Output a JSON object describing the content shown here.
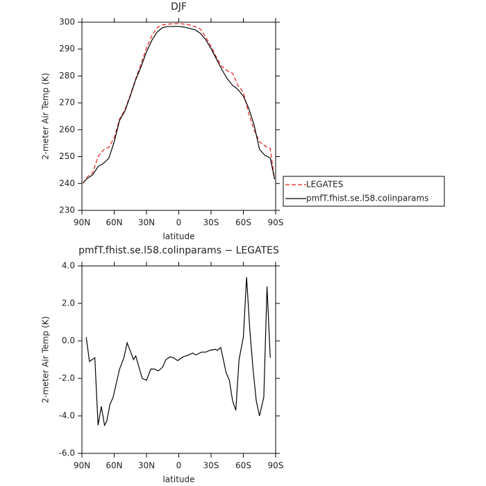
{
  "chart_data": [
    {
      "type": "line",
      "title": "DJF",
      "x_label": "latitude",
      "y_label": "2-meter Air Temp (K)",
      "x": [
        89,
        85,
        80,
        75,
        70,
        65,
        60,
        55,
        50,
        45,
        40,
        35,
        30,
        25,
        20,
        15,
        10,
        5,
        0,
        -5,
        -10,
        -15,
        -20,
        -25,
        -30,
        -35,
        -40,
        -45,
        -50,
        -55,
        -60,
        -65,
        -70,
        -75,
        -80,
        -85,
        -89
      ],
      "xlim": [
        90,
        -90
      ],
      "xticks": [
        {
          "value": 90,
          "label": "90N"
        },
        {
          "value": 60,
          "label": "60N"
        },
        {
          "value": 30,
          "label": "30N"
        },
        0,
        {
          "value": -30,
          "label": "30S"
        },
        {
          "value": -60,
          "label": "60S"
        },
        {
          "value": -90,
          "label": "90S"
        }
      ],
      "ylim": [
        230,
        300
      ],
      "yticks": [
        230,
        240,
        250,
        260,
        270,
        280,
        290,
        300
      ],
      "legend": "right",
      "series": [
        {
          "name": "LEGATES",
          "color": "#e0201b",
          "dashed": true,
          "values": [
            240,
            242.5,
            244,
            250,
            252.5,
            253.5,
            257,
            264,
            267.5,
            273,
            279,
            284.5,
            290.5,
            295,
            298,
            299,
            299.3,
            299.4,
            299.5,
            299.3,
            299,
            298.4,
            297.5,
            294.5,
            291,
            287,
            283.5,
            282,
            281,
            276.5,
            274,
            266,
            260,
            255.5,
            254,
            253,
            241.5
          ]
        },
        {
          "name": "pmfT.fhist.se.l58.colinparams",
          "color": "#000000",
          "dashed": false,
          "values": [
            240.3,
            241.9,
            243.2,
            246.3,
            247.5,
            249.4,
            255.5,
            263.5,
            267,
            272.6,
            278.6,
            283.5,
            289,
            293.3,
            296.4,
            298,
            298.4,
            298.4,
            298.4,
            298.2,
            297.7,
            297.2,
            295.9,
            293.5,
            290.2,
            286.3,
            282.4,
            279,
            276.5,
            275,
            272.5,
            268,
            261.8,
            252.7,
            250.5,
            249.5,
            241.6
          ]
        }
      ]
    },
    {
      "type": "line",
      "title": "pmfT.fhist.se.l58.colinparams − LEGATES",
      "x_label": "latitude",
      "y_label": "2-meter Air Temp (K)",
      "x": [
        86,
        83,
        78,
        75,
        72,
        69,
        67,
        64,
        61,
        55,
        51,
        48,
        42,
        40,
        34,
        30,
        26,
        23,
        19,
        15,
        12,
        8,
        5,
        1,
        -4,
        -7,
        -13,
        -16,
        -21,
        -25,
        -29,
        -34,
        -36,
        -39,
        -44,
        -47,
        -50,
        -53,
        -56,
        -60,
        -63,
        -66,
        -69,
        -72,
        -75,
        -79,
        -82,
        -85
      ],
      "xlim": [
        90,
        -90
      ],
      "xticks": [
        {
          "value": 90,
          "label": "90N"
        },
        {
          "value": 60,
          "label": "60N"
        },
        {
          "value": 30,
          "label": "30N"
        },
        0,
        {
          "value": -30,
          "label": "30S"
        },
        {
          "value": -60,
          "label": "60S"
        },
        {
          "value": -90,
          "label": "90S"
        }
      ],
      "ylim": [
        -6,
        4
      ],
      "yticks": [
        {
          "value": -6,
          "label": "-6.0"
        },
        {
          "value": -4,
          "label": "-4.0"
        },
        {
          "value": -2,
          "label": "-2.0"
        },
        {
          "value": 0,
          "label": "0.0"
        },
        {
          "value": 2,
          "label": "2.0"
        },
        {
          "value": 4,
          "label": "4.0"
        }
      ],
      "series": [
        {
          "color": "#000000",
          "dashed": false,
          "values": [
            0.2,
            -1.1,
            -0.9,
            -4.5,
            -3.5,
            -4.5,
            -4.3,
            -3.4,
            -3.0,
            -1.5,
            -0.9,
            -0.1,
            -1.0,
            -0.8,
            -2.0,
            -2.1,
            -1.5,
            -1.5,
            -1.6,
            -1.4,
            -1.0,
            -0.85,
            -0.9,
            -1.05,
            -0.85,
            -0.8,
            -0.65,
            -0.75,
            -0.6,
            -0.6,
            -0.5,
            -0.45,
            -0.5,
            -0.35,
            -1.7,
            -2.1,
            -3.2,
            -3.7,
            -1.0,
            0.2,
            3.4,
            0.6,
            -1.5,
            -3.2,
            -4.0,
            -3.0,
            2.9,
            -0.9
          ]
        }
      ]
    }
  ]
}
